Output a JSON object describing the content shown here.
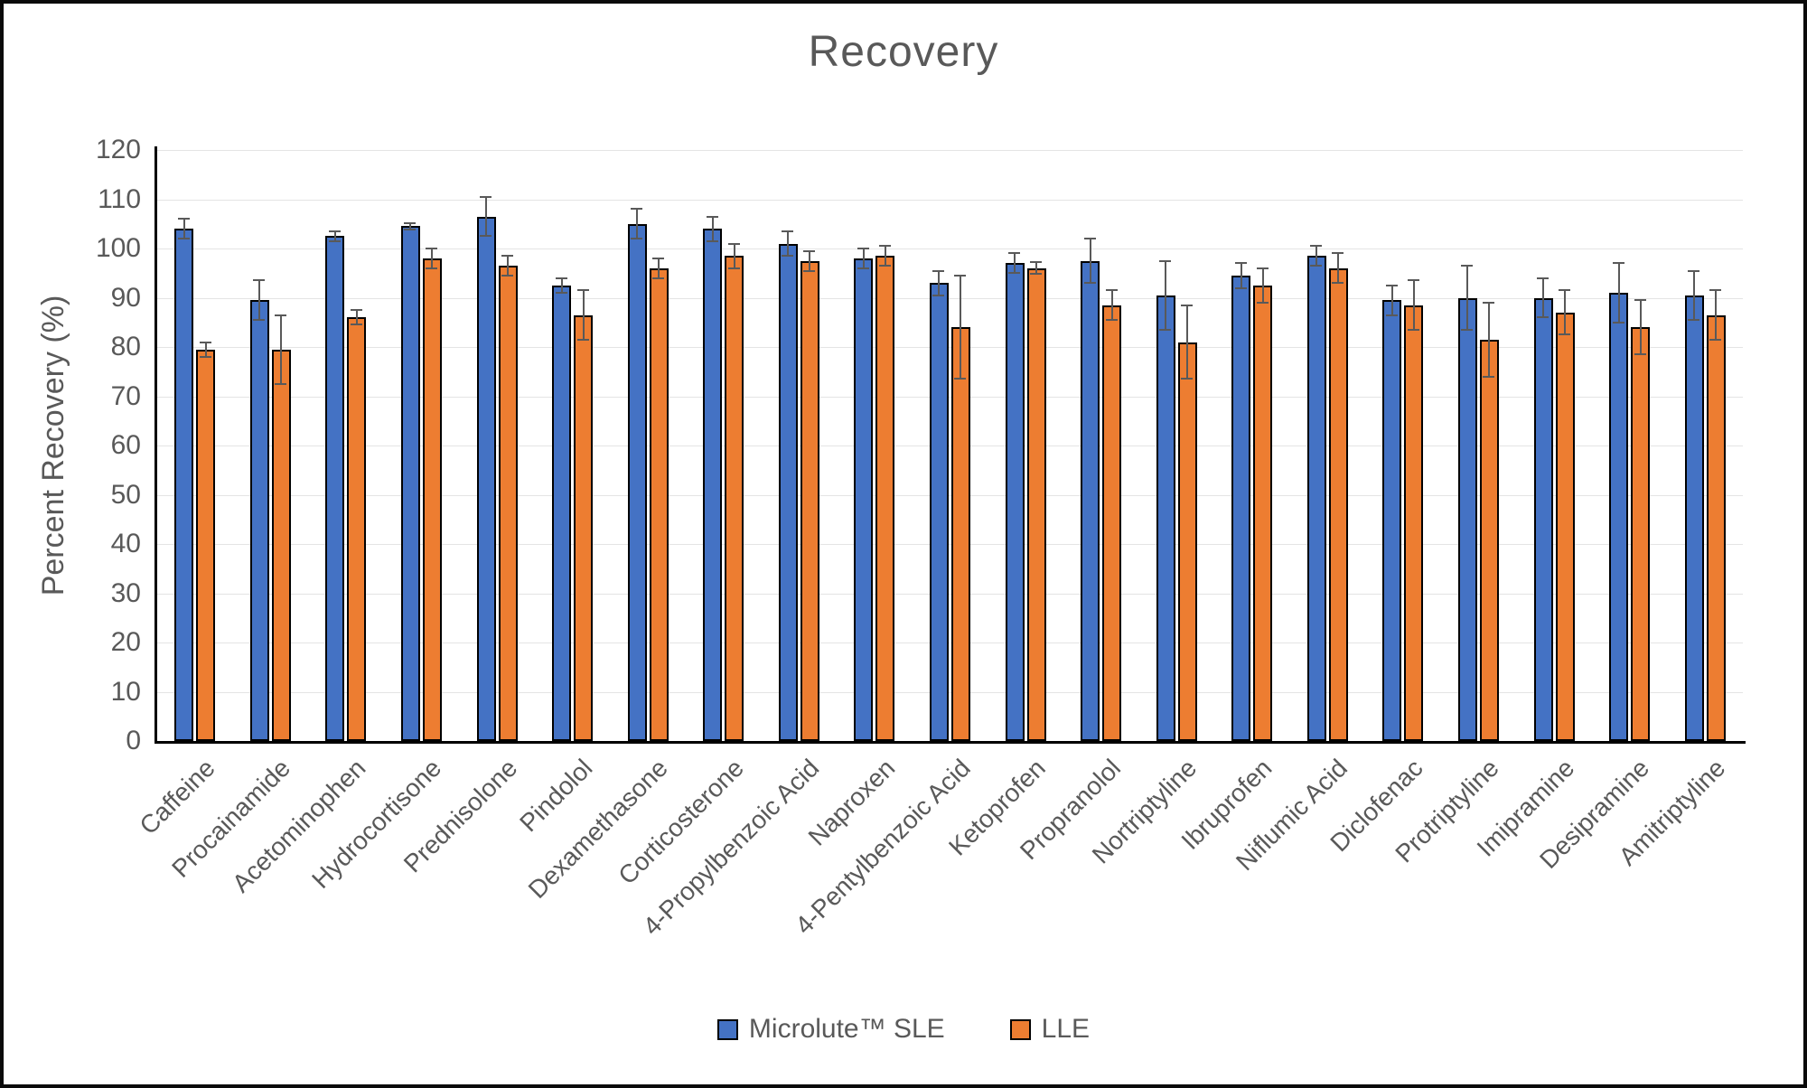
{
  "chart_data": {
    "type": "bar",
    "title": "Recovery",
    "ylabel": "Percent Recovery (%)",
    "xlabel": "",
    "ylim": [
      0,
      120
    ],
    "ytick_step": 10,
    "grid": true,
    "legend_position": "bottom",
    "error_bar_color": "#595959",
    "categories": [
      "Caffeine",
      "Procainamide",
      "Acetominophen",
      "Hydrocortisone",
      "Prednisolone",
      "Pindolol",
      "Dexamethasone",
      "Corticosterone",
      "4-Propylbenzoic Acid",
      "Naproxen",
      "4-Pentylbenzoic Acid",
      "Ketoprofen",
      "Propranolol",
      "Nortriptyline",
      "Ibruprofen",
      "Niflumic Acid",
      "Diclofenac",
      "Protriptyline",
      "Imipramine",
      "Desipramine",
      "Amitriptyline"
    ],
    "series": [
      {
        "name": "Microlute™ SLE",
        "color": "#4472C4",
        "values": [
          104,
          89.5,
          102.5,
          104.5,
          106.5,
          92.5,
          105,
          104,
          101,
          98,
          93,
          97,
          97.5,
          90.5,
          94.5,
          98.5,
          89.5,
          90,
          90,
          91,
          90.5
        ],
        "errors": [
          2,
          4,
          1,
          0.7,
          4,
          1.5,
          3,
          2.5,
          2.5,
          2,
          2.5,
          2,
          4.5,
          7,
          2.5,
          2,
          3,
          6.5,
          4,
          6,
          5
        ]
      },
      {
        "name": "LLE",
        "color": "#ED7D31",
        "values": [
          79.5,
          79.5,
          86,
          98,
          96.5,
          86.5,
          96,
          98.5,
          97.5,
          98.5,
          84,
          96,
          88.5,
          81,
          92.5,
          96,
          88.5,
          81.5,
          87,
          84,
          86.5
        ],
        "errors": [
          1.5,
          7,
          1.5,
          2,
          2,
          5,
          2,
          2.5,
          2,
          2,
          10.5,
          1.2,
          3,
          7.5,
          3.5,
          3,
          5,
          7.5,
          4.5,
          5.5,
          5
        ]
      }
    ]
  }
}
